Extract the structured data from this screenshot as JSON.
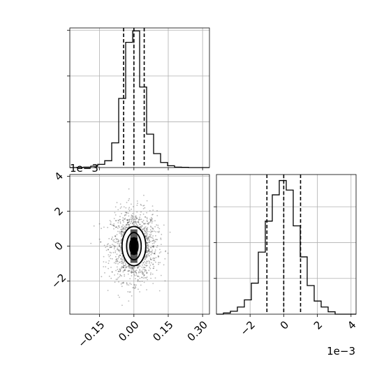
{
  "chart_data": [
    {
      "panel": "top-left",
      "type": "histogram",
      "x_range": [
        -0.28,
        0.33
      ],
      "grid": true,
      "bins": {
        "edges": [
          -0.28,
          -0.2495,
          -0.219,
          -0.1885,
          -0.158,
          -0.1275,
          -0.097,
          -0.0665,
          -0.036,
          -0.0055,
          0.025,
          0.0555,
          0.086,
          0.1165,
          0.147,
          0.1775,
          0.208,
          0.2385,
          0.269,
          0.2995,
          0.33
        ],
        "counts": [
          0,
          1,
          2,
          6,
          14,
          30,
          108,
          302,
          547,
          597,
          352,
          146,
          61,
          22,
          8,
          2,
          1,
          0,
          0,
          0
        ]
      },
      "y_max": 610,
      "quantiles": [
        -0.045,
        0.0,
        0.045
      ],
      "x_ticks": [
        -0.15,
        0.0,
        0.15,
        0.3
      ],
      "y_ticks": [
        200,
        400,
        600
      ]
    },
    {
      "panel": "bottom-left",
      "type": "scatter",
      "x_range": [
        -0.28,
        0.33
      ],
      "y_range": [
        -3.9,
        4.1
      ],
      "grid": true,
      "offset_text": "1e−3",
      "x_ticks": [
        -0.15,
        0.0,
        0.15,
        0.3
      ],
      "x_tick_labels": [
        "−0.15",
        "0.00",
        "0.15",
        "0.30"
      ],
      "y_ticks": [
        -2,
        0,
        2,
        4
      ],
      "y_tick_labels": [
        "−2",
        "0",
        "2",
        "4"
      ],
      "center": [
        0.0,
        0.0
      ],
      "spread": [
        0.05,
        1.0
      ],
      "contour_levels": [
        {
          "sx": 0.052,
          "sy": 1.12
        },
        {
          "sx": 0.032,
          "sy": 0.78
        },
        {
          "sx": 0.018,
          "sy": 0.48
        }
      ]
    },
    {
      "panel": "bottom-right",
      "type": "histogram",
      "x_range": [
        -4.0,
        4.3
      ],
      "grid": true,
      "offset_text": "1e−3",
      "bins": {
        "edges": [
          -4.0,
          -3.585,
          -3.17,
          -2.755,
          -2.34,
          -1.925,
          -1.51,
          -1.095,
          -0.68,
          -0.265,
          0.15,
          0.565,
          0.98,
          1.395,
          1.81,
          2.225,
          2.64,
          3.055,
          3.47,
          3.885,
          4.3
        ],
        "counts": [
          0,
          2,
          5,
          12,
          24,
          52,
          104,
          156,
          200,
          224,
          208,
          148,
          96,
          48,
          22,
          12,
          4,
          0,
          0,
          0
        ]
      },
      "y_max": 234,
      "quantiles": [
        -1.0,
        0.0,
        1.0
      ],
      "x_ticks": [
        -2,
        0,
        2,
        4
      ],
      "x_tick_labels": [
        "−2",
        "0",
        "2",
        "4"
      ],
      "y_ticks": [
        60,
        120,
        180
      ]
    }
  ]
}
